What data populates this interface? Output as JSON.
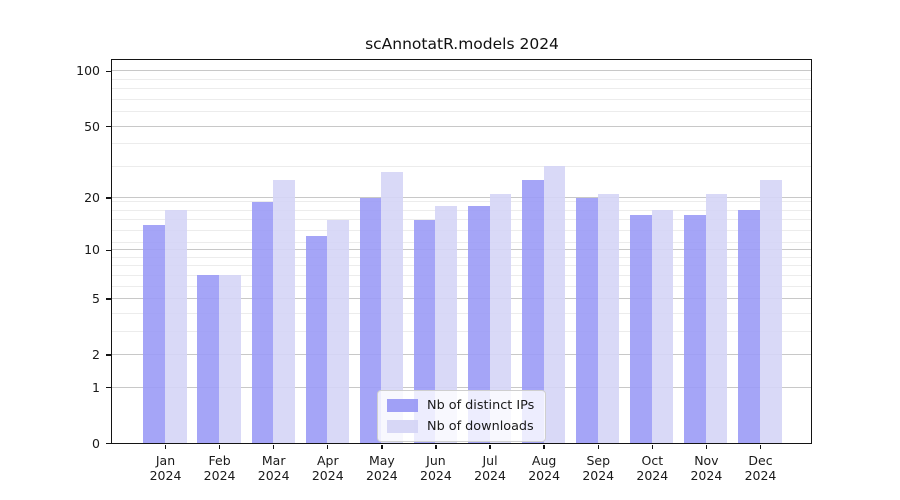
{
  "title": "scAnnotatR.models 2024",
  "chart_data": {
    "type": "bar",
    "title": "scAnnotatR.models 2024",
    "categories": [
      "Jan",
      "Feb",
      "Mar",
      "Apr",
      "May",
      "Jun",
      "Jul",
      "Aug",
      "Sep",
      "Oct",
      "Nov",
      "Dec"
    ],
    "category_year": "2024",
    "series": [
      {
        "name": "Nb of distinct IPs",
        "color": "#9b9bf6",
        "values": [
          14,
          7,
          19,
          12,
          20,
          15,
          18,
          25,
          20,
          16,
          16,
          17
        ]
      },
      {
        "name": "Nb of downloads",
        "color": "#d5d5f6",
        "values": [
          17,
          7,
          25,
          15,
          28,
          18,
          21,
          30,
          21,
          17,
          21,
          25
        ]
      }
    ],
    "xlabel": "",
    "ylabel": "",
    "yscale": "log10(1+x)",
    "ylim": [
      0,
      115
    ],
    "ymajor_ticks": [
      0,
      1,
      2,
      5,
      10,
      20,
      50,
      100
    ],
    "yminor_gridlines": [
      3,
      4,
      6,
      7,
      8,
      9,
      11,
      13,
      15,
      17,
      19,
      30,
      40,
      60,
      70,
      80,
      90
    ],
    "grid": true,
    "legend_position": "lower center inside"
  },
  "legend": {
    "items": [
      {
        "label": "Nb of distinct IPs"
      },
      {
        "label": "Nb of downloads"
      }
    ]
  },
  "colors": {
    "distinct_ips": "#9b9bf6",
    "downloads": "#d5d5f6",
    "grid_major": "#c8c8c8",
    "grid_minor": "#ececec",
    "spine": "#141414",
    "background": "#ffffff"
  }
}
